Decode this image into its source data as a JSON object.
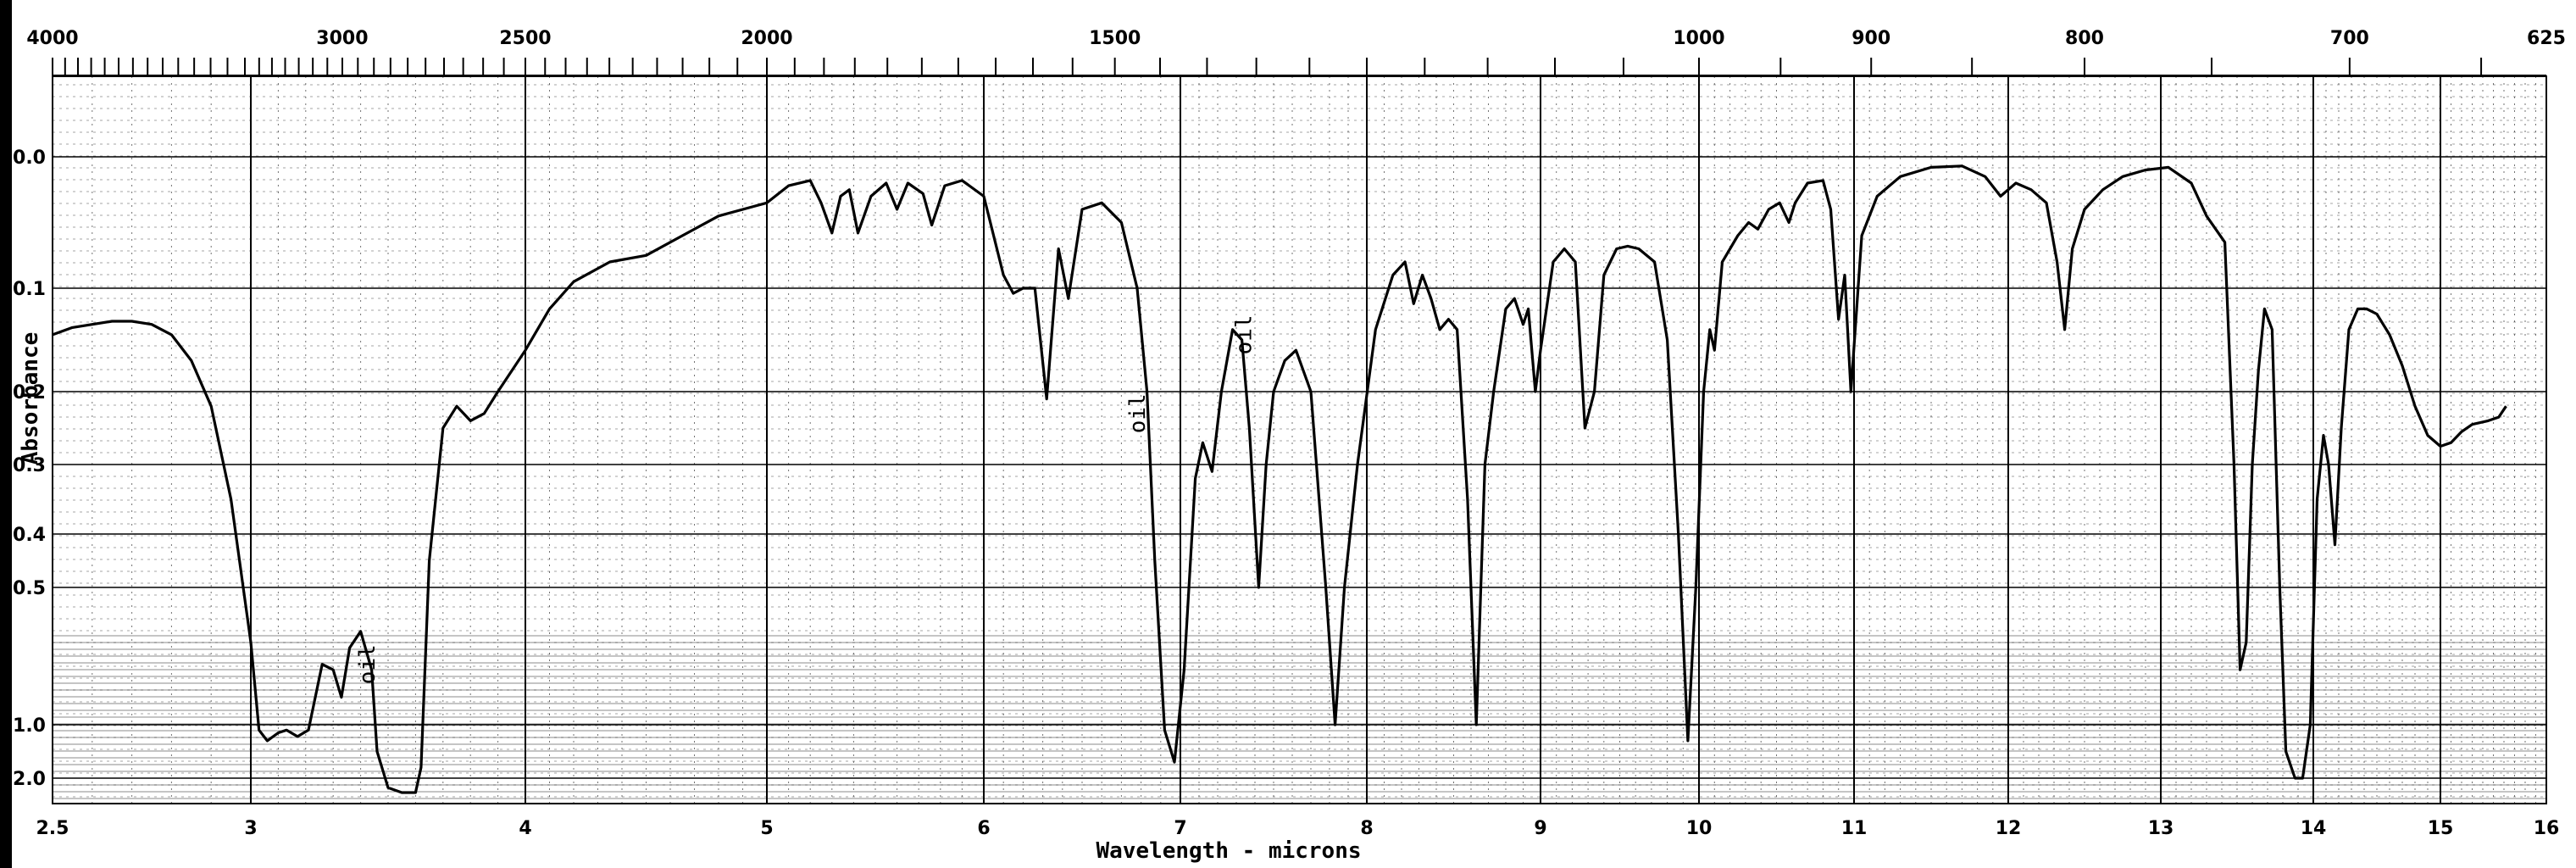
{
  "chart_data": {
    "type": "line",
    "title": "",
    "xlabel": "Wavelength - microns",
    "ylabel": "Absorbance",
    "top_xlabel": "",
    "xlim": [
      2.5,
      16
    ],
    "x_ticks": [
      {
        "v": 2.5,
        "label": "2.5"
      },
      {
        "v": 3,
        "label": "3"
      },
      {
        "v": 4,
        "label": "4"
      },
      {
        "v": 5,
        "label": "5"
      },
      {
        "v": 6,
        "label": "6"
      },
      {
        "v": 7,
        "label": "7"
      },
      {
        "v": 8,
        "label": "8"
      },
      {
        "v": 9,
        "label": "9"
      },
      {
        "v": 10,
        "label": "10"
      },
      {
        "v": 11,
        "label": "11"
      },
      {
        "v": 12,
        "label": "12"
      },
      {
        "v": 13,
        "label": "13"
      },
      {
        "v": 14,
        "label": "14"
      },
      {
        "v": 15,
        "label": "15"
      },
      {
        "v": 16,
        "label": "16"
      }
    ],
    "top_ticks": [
      {
        "w": 2.5,
        "label": "4000"
      },
      {
        "w": 3.333,
        "label": "3000"
      },
      {
        "w": 4.0,
        "label": "2500"
      },
      {
        "w": 5.0,
        "label": "2000"
      },
      {
        "w": 6.667,
        "label": "1500"
      },
      {
        "w": 10.0,
        "label": "1000"
      },
      {
        "w": 11.111,
        "label": "900"
      },
      {
        "w": 12.5,
        "label": "800"
      },
      {
        "w": 14.286,
        "label": "700"
      },
      {
        "w": 16.0,
        "label": "625"
      }
    ],
    "y_ticks": [
      {
        "a": 0.0,
        "label": "0.0"
      },
      {
        "a": 0.1,
        "label": "0.1"
      },
      {
        "a": 0.2,
        "label": "0.2"
      },
      {
        "a": 0.3,
        "label": "0.3"
      },
      {
        "a": 0.4,
        "label": "0.4"
      },
      {
        "a": 0.5,
        "label": "0.5"
      },
      {
        "a": 1.0,
        "label": "1.0"
      },
      {
        "a": 2.0,
        "label": "2.0"
      }
    ],
    "y_scale": "log transmittance (absorbance)",
    "grid": true,
    "series": [
      {
        "color": "#000000",
        "points": [
          [
            2.5,
            0.145
          ],
          [
            2.55,
            0.138
          ],
          [
            2.6,
            0.135
          ],
          [
            2.65,
            0.132
          ],
          [
            2.7,
            0.132
          ],
          [
            2.75,
            0.135
          ],
          [
            2.8,
            0.145
          ],
          [
            2.85,
            0.17
          ],
          [
            2.9,
            0.22
          ],
          [
            2.95,
            0.35
          ],
          [
            3.0,
            0.7
          ],
          [
            3.03,
            1.1
          ],
          [
            3.06,
            1.3
          ],
          [
            3.1,
            1.15
          ],
          [
            3.13,
            1.1
          ],
          [
            3.17,
            1.22
          ],
          [
            3.21,
            1.1
          ],
          [
            3.26,
            0.78
          ],
          [
            3.3,
            0.8
          ],
          [
            3.33,
            0.9
          ],
          [
            3.36,
            0.72
          ],
          [
            3.4,
            0.66
          ],
          [
            3.44,
            0.8
          ],
          [
            3.46,
            1.5
          ],
          [
            3.5,
            2.2
          ],
          [
            3.55,
            2.3
          ],
          [
            3.6,
            2.3
          ],
          [
            3.62,
            1.8
          ],
          [
            3.65,
            0.45
          ],
          [
            3.7,
            0.25
          ],
          [
            3.75,
            0.22
          ],
          [
            3.8,
            0.24
          ],
          [
            3.85,
            0.23
          ],
          [
            3.9,
            0.2
          ],
          [
            3.95,
            0.18
          ],
          [
            4.0,
            0.16
          ],
          [
            4.1,
            0.12
          ],
          [
            4.2,
            0.095
          ],
          [
            4.35,
            0.08
          ],
          [
            4.5,
            0.075
          ],
          [
            4.65,
            0.06
          ],
          [
            4.8,
            0.045
          ],
          [
            5.0,
            0.035
          ],
          [
            5.1,
            0.022
          ],
          [
            5.2,
            0.018
          ],
          [
            5.25,
            0.035
          ],
          [
            5.3,
            0.058
          ],
          [
            5.34,
            0.03
          ],
          [
            5.38,
            0.025
          ],
          [
            5.42,
            0.058
          ],
          [
            5.48,
            0.03
          ],
          [
            5.55,
            0.02
          ],
          [
            5.6,
            0.04
          ],
          [
            5.65,
            0.02
          ],
          [
            5.72,
            0.028
          ],
          [
            5.76,
            0.052
          ],
          [
            5.82,
            0.022
          ],
          [
            5.9,
            0.018
          ],
          [
            6.0,
            0.03
          ],
          [
            6.05,
            0.06
          ],
          [
            6.1,
            0.09
          ],
          [
            6.15,
            0.105
          ],
          [
            6.2,
            0.1
          ],
          [
            6.26,
            0.1
          ],
          [
            6.32,
            0.21
          ],
          [
            6.38,
            0.07
          ],
          [
            6.43,
            0.11
          ],
          [
            6.5,
            0.04
          ],
          [
            6.6,
            0.035
          ],
          [
            6.7,
            0.05
          ],
          [
            6.78,
            0.1
          ],
          [
            6.83,
            0.2
          ],
          [
            6.87,
            0.45
          ],
          [
            6.92,
            1.1
          ],
          [
            6.97,
            1.7
          ],
          [
            7.02,
            0.8
          ],
          [
            7.08,
            0.32
          ],
          [
            7.12,
            0.27
          ],
          [
            7.17,
            0.31
          ],
          [
            7.22,
            0.2
          ],
          [
            7.28,
            0.14
          ],
          [
            7.33,
            0.15
          ],
          [
            7.37,
            0.25
          ],
          [
            7.42,
            0.5
          ],
          [
            7.46,
            0.3
          ],
          [
            7.5,
            0.2
          ],
          [
            7.56,
            0.17
          ],
          [
            7.62,
            0.16
          ],
          [
            7.7,
            0.2
          ],
          [
            7.78,
            0.5
          ],
          [
            7.83,
            1.0
          ],
          [
            7.88,
            0.5
          ],
          [
            7.95,
            0.3
          ],
          [
            8.05,
            0.14
          ],
          [
            8.15,
            0.09
          ],
          [
            8.22,
            0.08
          ],
          [
            8.27,
            0.115
          ],
          [
            8.32,
            0.09
          ],
          [
            8.37,
            0.11
          ],
          [
            8.42,
            0.14
          ],
          [
            8.47,
            0.13
          ],
          [
            8.52,
            0.14
          ],
          [
            8.58,
            0.35
          ],
          [
            8.63,
            1.0
          ],
          [
            8.68,
            0.3
          ],
          [
            8.73,
            0.2
          ],
          [
            8.8,
            0.12
          ],
          [
            8.85,
            0.11
          ],
          [
            8.9,
            0.135
          ],
          [
            8.93,
            0.12
          ],
          [
            8.97,
            0.2
          ],
          [
            9.0,
            0.16
          ],
          [
            9.08,
            0.08
          ],
          [
            9.15,
            0.07
          ],
          [
            9.22,
            0.08
          ],
          [
            9.28,
            0.25
          ],
          [
            9.34,
            0.2
          ],
          [
            9.4,
            0.09
          ],
          [
            9.48,
            0.07
          ],
          [
            9.55,
            0.068
          ],
          [
            9.62,
            0.07
          ],
          [
            9.72,
            0.08
          ],
          [
            9.8,
            0.15
          ],
          [
            9.87,
            0.4
          ],
          [
            9.93,
            1.3
          ],
          [
            9.98,
            0.5
          ],
          [
            10.03,
            0.2
          ],
          [
            10.07,
            0.14
          ],
          [
            10.1,
            0.16
          ],
          [
            10.15,
            0.08
          ],
          [
            10.25,
            0.06
          ],
          [
            10.32,
            0.05
          ],
          [
            10.38,
            0.055
          ],
          [
            10.45,
            0.04
          ],
          [
            10.52,
            0.035
          ],
          [
            10.58,
            0.05
          ],
          [
            10.62,
            0.035
          ],
          [
            10.7,
            0.02
          ],
          [
            10.8,
            0.018
          ],
          [
            10.85,
            0.04
          ],
          [
            10.9,
            0.13
          ],
          [
            10.94,
            0.09
          ],
          [
            10.98,
            0.2
          ],
          [
            11.05,
            0.06
          ],
          [
            11.15,
            0.03
          ],
          [
            11.3,
            0.015
          ],
          [
            11.5,
            0.008
          ],
          [
            11.7,
            0.007
          ],
          [
            11.85,
            0.015
          ],
          [
            11.95,
            0.03
          ],
          [
            12.05,
            0.02
          ],
          [
            12.15,
            0.025
          ],
          [
            12.25,
            0.035
          ],
          [
            12.32,
            0.08
          ],
          [
            12.37,
            0.14
          ],
          [
            12.42,
            0.07
          ],
          [
            12.5,
            0.04
          ],
          [
            12.62,
            0.025
          ],
          [
            12.75,
            0.015
          ],
          [
            12.9,
            0.01
          ],
          [
            13.05,
            0.008
          ],
          [
            13.2,
            0.02
          ],
          [
            13.3,
            0.045
          ],
          [
            13.36,
            0.055
          ],
          [
            13.42,
            0.065
          ],
          [
            13.48,
            0.3
          ],
          [
            13.52,
            0.8
          ],
          [
            13.56,
            0.7
          ],
          [
            13.6,
            0.3
          ],
          [
            13.64,
            0.18
          ],
          [
            13.68,
            0.12
          ],
          [
            13.73,
            0.14
          ],
          [
            13.78,
            0.5
          ],
          [
            13.82,
            1.5
          ],
          [
            13.88,
            2.0
          ],
          [
            13.93,
            2.0
          ],
          [
            13.98,
            1.0
          ],
          [
            14.03,
            0.35
          ],
          [
            14.08,
            0.26
          ],
          [
            14.12,
            0.3
          ],
          [
            14.17,
            0.42
          ],
          [
            14.22,
            0.25
          ],
          [
            14.28,
            0.14
          ],
          [
            14.35,
            0.12
          ],
          [
            14.42,
            0.12
          ],
          [
            14.5,
            0.125
          ],
          [
            14.6,
            0.145
          ],
          [
            14.7,
            0.175
          ],
          [
            14.8,
            0.22
          ],
          [
            14.9,
            0.26
          ],
          [
            15.0,
            0.275
          ],
          [
            15.1,
            0.27
          ],
          [
            15.2,
            0.255
          ],
          [
            15.3,
            0.245
          ],
          [
            15.45,
            0.24
          ],
          [
            15.55,
            0.235
          ],
          [
            15.62,
            0.22
          ]
        ]
      }
    ],
    "annotations": [
      {
        "text": "oil",
        "x": 3.45,
        "a": 0.78
      },
      {
        "text": "oil",
        "x": 6.82,
        "a": 0.23
      },
      {
        "text": "oil",
        "x": 7.38,
        "a": 0.145
      }
    ]
  }
}
